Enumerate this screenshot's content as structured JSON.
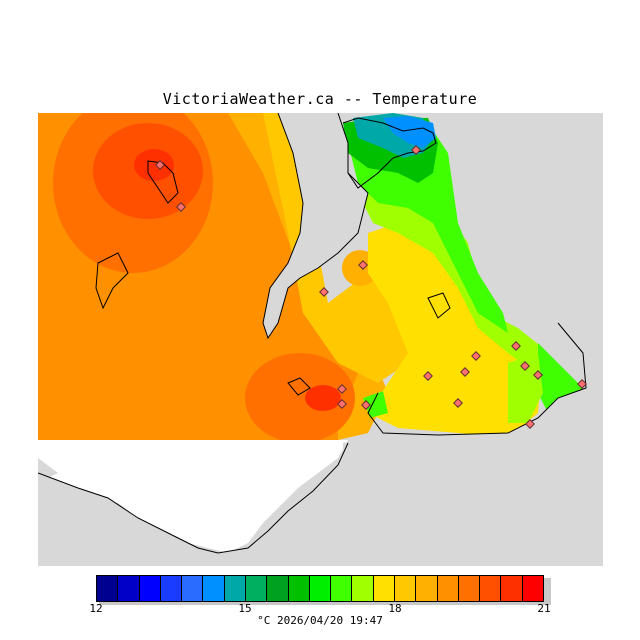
{
  "header": {
    "title": "VictoriaWeather.ca -- Temperature"
  },
  "map": {
    "variable": "temperature",
    "unit": "°C",
    "background_land_color": "#d8d8d8",
    "no_data_color": "#ffffff",
    "station_marker_color": "#ff7070"
  },
  "legend": {
    "colors": [
      "#000090",
      "#0000c8",
      "#0000ff",
      "#1a3cff",
      "#2a6cff",
      "#0090ff",
      "#00a8a8",
      "#00b060",
      "#00a020",
      "#00c000",
      "#00ee00",
      "#40ff00",
      "#a0ff00",
      "#ffe000",
      "#ffc800",
      "#ffb000",
      "#ff9000",
      "#ff7000",
      "#ff5000",
      "#ff3000",
      "#ff0000"
    ],
    "min": 12,
    "max": 21,
    "tick_labels": [
      "12",
      "15",
      "18",
      "21"
    ],
    "caption": "°C  2026/04/20 19:47"
  }
}
